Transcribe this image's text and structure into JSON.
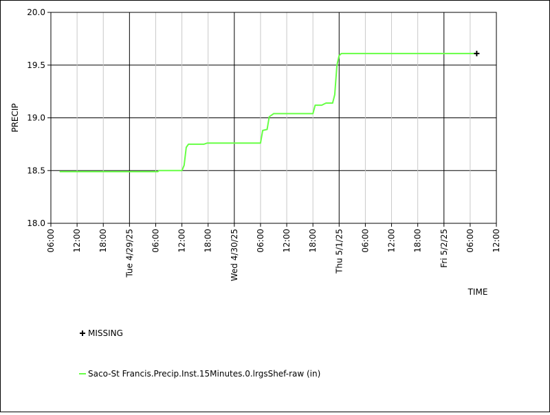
{
  "chart_data": {
    "type": "line",
    "ylabel": "PRECIP",
    "xlabel": "TIME",
    "ylim": [
      18.0,
      20.0
    ],
    "yticks": [
      "18.0",
      "18.5",
      "19.0",
      "19.5",
      "20.0"
    ],
    "xlim": [
      "2025-04-28 06:00",
      "2025-05-02 12:00"
    ],
    "xticks": [
      {
        "t": "2025-04-28 06:00",
        "label": "06:00",
        "major": false
      },
      {
        "t": "2025-04-28 12:00",
        "label": "12:00",
        "major": false
      },
      {
        "t": "2025-04-28 18:00",
        "label": "18:00",
        "major": false
      },
      {
        "t": "2025-04-29 00:00",
        "label": "Tue 4/29/25",
        "major": true
      },
      {
        "t": "2025-04-29 06:00",
        "label": "06:00",
        "major": false
      },
      {
        "t": "2025-04-29 12:00",
        "label": "12:00",
        "major": false
      },
      {
        "t": "2025-04-29 18:00",
        "label": "18:00",
        "major": false
      },
      {
        "t": "2025-04-30 00:00",
        "label": "Wed 4/30/25",
        "major": true
      },
      {
        "t": "2025-04-30 06:00",
        "label": "06:00",
        "major": false
      },
      {
        "t": "2025-04-30 12:00",
        "label": "12:00",
        "major": false
      },
      {
        "t": "2025-04-30 18:00",
        "label": "18:00",
        "major": false
      },
      {
        "t": "2025-05-01 00:00",
        "label": "Thu 5/1/25",
        "major": true
      },
      {
        "t": "2025-05-01 06:00",
        "label": "06:00",
        "major": false
      },
      {
        "t": "2025-05-01 12:00",
        "label": "12:00",
        "major": false
      },
      {
        "t": "2025-05-01 18:00",
        "label": "18:00",
        "major": false
      },
      {
        "t": "2025-05-02 00:00",
        "label": "Fri 5/2/25",
        "major": true
      },
      {
        "t": "2025-05-02 06:00",
        "label": "06:00",
        "major": false
      },
      {
        "t": "2025-05-02 12:00",
        "label": "12:00",
        "major": false
      }
    ],
    "legend": [
      {
        "label": "MISSING",
        "marker": "plus",
        "color": "#000000"
      },
      {
        "label": "Saco-St Francis.Precip.Inst.15Minutes.0.lrgsShef-raw (in)",
        "marker": "line",
        "color": "#66ff44"
      }
    ],
    "series": [
      {
        "name": "Saco-St Francis.Precip.Inst.15Minutes.0.lrgsShef-raw (in)",
        "color": "#66ff44",
        "points": [
          [
            "2025-04-28 08:00",
            18.49
          ],
          [
            "2025-04-29 06:30",
            18.49
          ],
          [
            "2025-04-29 06:45",
            18.5
          ],
          [
            "2025-04-29 12:00",
            18.5
          ],
          [
            "2025-04-29 12:30",
            18.55
          ],
          [
            "2025-04-29 13:00",
            18.72
          ],
          [
            "2025-04-29 13:30",
            18.75
          ],
          [
            "2025-04-29 17:00",
            18.75
          ],
          [
            "2025-04-29 17:45",
            18.76
          ],
          [
            "2025-04-30 06:00",
            18.76
          ],
          [
            "2025-04-30 06:30",
            18.88
          ],
          [
            "2025-04-30 07:30",
            18.89
          ],
          [
            "2025-04-30 08:00",
            19.01
          ],
          [
            "2025-04-30 09:00",
            19.04
          ],
          [
            "2025-04-30 18:00",
            19.04
          ],
          [
            "2025-04-30 18:30",
            19.12
          ],
          [
            "2025-04-30 20:00",
            19.12
          ],
          [
            "2025-04-30 21:00",
            19.14
          ],
          [
            "2025-04-30 22:30",
            19.14
          ],
          [
            "2025-04-30 23:00",
            19.22
          ],
          [
            "2025-04-30 23:30",
            19.5
          ],
          [
            "2025-05-01 00:00",
            19.59
          ],
          [
            "2025-05-01 00:30",
            19.61
          ],
          [
            "2025-05-02 07:30",
            19.61
          ]
        ]
      }
    ],
    "missing": [
      [
        "2025-05-02 07:30",
        19.61
      ]
    ]
  }
}
